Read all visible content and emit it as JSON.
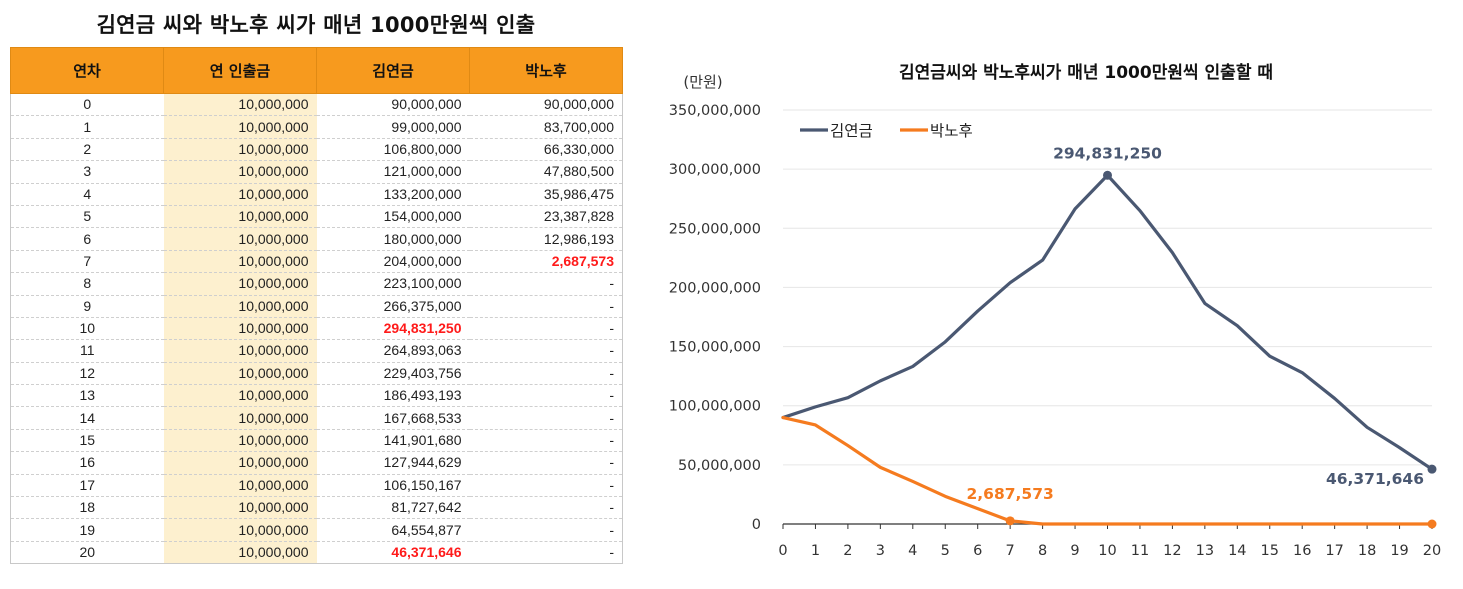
{
  "table": {
    "title": "김연금 씨와 박노후 씨가 매년 1000만원씩 인출",
    "headers": [
      "연차",
      "연 인출금",
      "김연금",
      "박노후"
    ],
    "rows": [
      {
        "year": "0",
        "withdraw": "10,000,000",
        "kim": "90,000,000",
        "park": "90,000,000"
      },
      {
        "year": "1",
        "withdraw": "10,000,000",
        "kim": "99,000,000",
        "park": "83,700,000"
      },
      {
        "year": "2",
        "withdraw": "10,000,000",
        "kim": "106,800,000",
        "park": "66,330,000"
      },
      {
        "year": "3",
        "withdraw": "10,000,000",
        "kim": "121,000,000",
        "park": "47,880,500"
      },
      {
        "year": "4",
        "withdraw": "10,000,000",
        "kim": "133,200,000",
        "park": "35,986,475"
      },
      {
        "year": "5",
        "withdraw": "10,000,000",
        "kim": "154,000,000",
        "park": "23,387,828"
      },
      {
        "year": "6",
        "withdraw": "10,000,000",
        "kim": "180,000,000",
        "park": "12,986,193"
      },
      {
        "year": "7",
        "withdraw": "10,000,000",
        "kim": "204,000,000",
        "park": "2,687,573",
        "park_highlight": true
      },
      {
        "year": "8",
        "withdraw": "10,000,000",
        "kim": "223,100,000",
        "park": "-"
      },
      {
        "year": "9",
        "withdraw": "10,000,000",
        "kim": "266,375,000",
        "park": "-"
      },
      {
        "year": "10",
        "withdraw": "10,000,000",
        "kim": "294,831,250",
        "park": "-",
        "kim_highlight": true
      },
      {
        "year": "11",
        "withdraw": "10,000,000",
        "kim": "264,893,063",
        "park": "-"
      },
      {
        "year": "12",
        "withdraw": "10,000,000",
        "kim": "229,403,756",
        "park": "-"
      },
      {
        "year": "13",
        "withdraw": "10,000,000",
        "kim": "186,493,193",
        "park": "-"
      },
      {
        "year": "14",
        "withdraw": "10,000,000",
        "kim": "167,668,533",
        "park": "-"
      },
      {
        "year": "15",
        "withdraw": "10,000,000",
        "kim": "141,901,680",
        "park": "-"
      },
      {
        "year": "16",
        "withdraw": "10,000,000",
        "kim": "127,944,629",
        "park": "-"
      },
      {
        "year": "17",
        "withdraw": "10,000,000",
        "kim": "106,150,167",
        "park": "-"
      },
      {
        "year": "18",
        "withdraw": "10,000,000",
        "kim": "81,727,642",
        "park": "-"
      },
      {
        "year": "19",
        "withdraw": "10,000,000",
        "kim": "64,554,877",
        "park": "-"
      },
      {
        "year": "20",
        "withdraw": "10,000,000",
        "kim": "46,371,646",
        "park": "-",
        "kim_highlight": true
      }
    ],
    "colors": {
      "header_bg": "#f79a1e",
      "withdraw_bg": "#fdf0cf",
      "highlight_text": "#ff1a1a"
    }
  },
  "chart_data": {
    "type": "line",
    "title": "김연금씨와 박노후씨가 매년 1000만원씩 인출할 때",
    "unit_label": "(만원)",
    "xlabel": "",
    "ylabel": "",
    "x": [
      0,
      1,
      2,
      3,
      4,
      5,
      6,
      7,
      8,
      9,
      10,
      11,
      12,
      13,
      14,
      15,
      16,
      17,
      18,
      19,
      20
    ],
    "ylim": [
      0,
      350000000
    ],
    "yticks": [
      0,
      50000000,
      100000000,
      150000000,
      200000000,
      250000000,
      300000000,
      350000000
    ],
    "ytick_labels": [
      "0",
      "50,000,000",
      "100,000,000",
      "150,000,000",
      "200,000,000",
      "250,000,000",
      "300,000,000",
      "350,000,000"
    ],
    "grid": "horizontal",
    "legend_position": "top-left",
    "series": [
      {
        "name": "김연금",
        "color": "#4a5872",
        "values": [
          90000000,
          99000000,
          106800000,
          121000000,
          133200000,
          154000000,
          180000000,
          204000000,
          223100000,
          266375000,
          294831250,
          264893063,
          229403756,
          186493193,
          167668533,
          141901680,
          127944629,
          106150167,
          81727642,
          64554877,
          46371646
        ]
      },
      {
        "name": "박노후",
        "color": "#f57b1f",
        "values": [
          90000000,
          83700000,
          66330000,
          47880500,
          35986475,
          23387828,
          12986193,
          2687573,
          0,
          0,
          0,
          0,
          0,
          0,
          0,
          0,
          0,
          0,
          0,
          0,
          0
        ]
      }
    ],
    "annotations": [
      {
        "series": 0,
        "index": 10,
        "text": "294,831,250"
      },
      {
        "series": 0,
        "index": 20,
        "text": "46,371,646"
      },
      {
        "series": 1,
        "index": 7,
        "text": "2,687,573"
      }
    ],
    "markers": [
      {
        "series": 0,
        "index": 10
      },
      {
        "series": 0,
        "index": 20
      },
      {
        "series": 1,
        "index": 7
      },
      {
        "series": 1,
        "index": 20
      }
    ]
  }
}
